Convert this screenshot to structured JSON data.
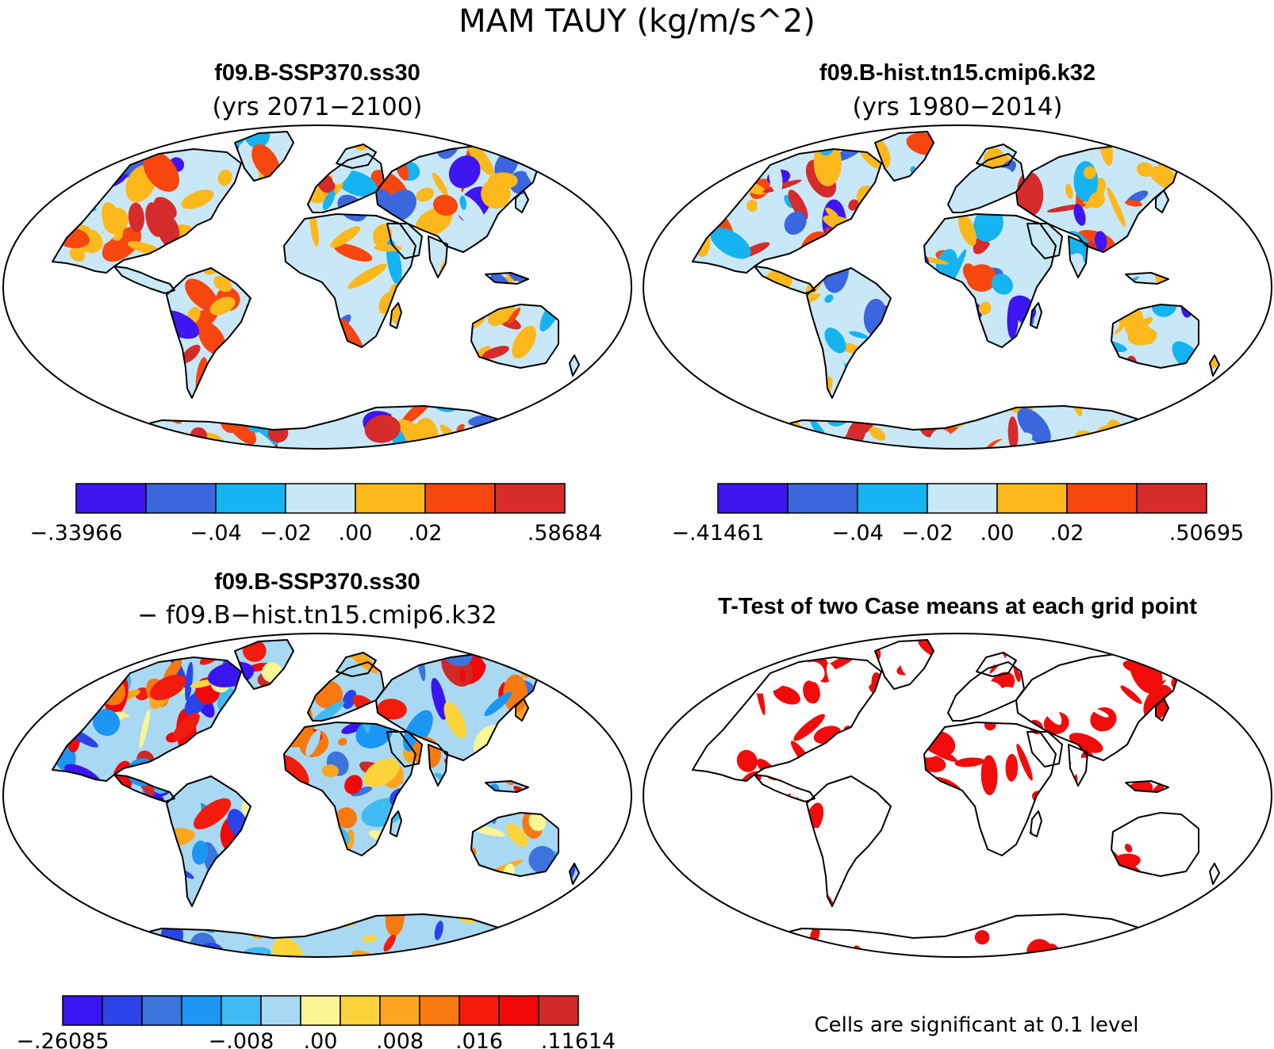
{
  "main_title": "MAM TAUY (kg/m/s^2)",
  "colors": {
    "base": [
      "#3e16f2",
      "#3a66de",
      "#15b4f0",
      "#c9e8f7",
      "#fdb81c",
      "#f7470f",
      "#d62b2b"
    ],
    "diff": [
      "#3b14f2",
      "#2a44e8",
      "#3d73dd",
      "#1b96f2",
      "#3fbaf2",
      "#a9d9f2",
      "#fbf596",
      "#fcd33a",
      "#fca61f",
      "#f8790f",
      "#f31b0b",
      "#f10808",
      "#d12828"
    ],
    "signif": "#f10b0b"
  },
  "panels": [
    {
      "id": "case1",
      "title": "f09.B-SSP370.ss30",
      "subtitle": "(yrs 2071−2100)",
      "colorbar": {
        "min_label": "−.33966",
        "max_label": ".58684",
        "tick_labels": [
          "−.04",
          "−.02",
          ".00",
          ".02"
        ]
      }
    },
    {
      "id": "case2",
      "title": "f09.B-hist.tn15.cmip6.k32",
      "subtitle": "(yrs 1980−2014)",
      "colorbar": {
        "min_label": "−.41461",
        "max_label": ".50695",
        "tick_labels": [
          "−.04",
          "−.02",
          ".00",
          ".02"
        ]
      }
    },
    {
      "id": "difference",
      "title": "f09.B-SSP370.ss30",
      "subtitle": "− f09.B−hist.tn15.cmip6.k32",
      "colorbar": {
        "min_label": "−.26085",
        "max_label": ".11614",
        "tick_labels": [
          "−.008",
          ".00",
          ".008",
          ".016"
        ]
      }
    },
    {
      "id": "ttest",
      "title": "T-Test of two Case means at each grid point",
      "footnote": "Cells are significant at 0.1 level"
    }
  ]
}
